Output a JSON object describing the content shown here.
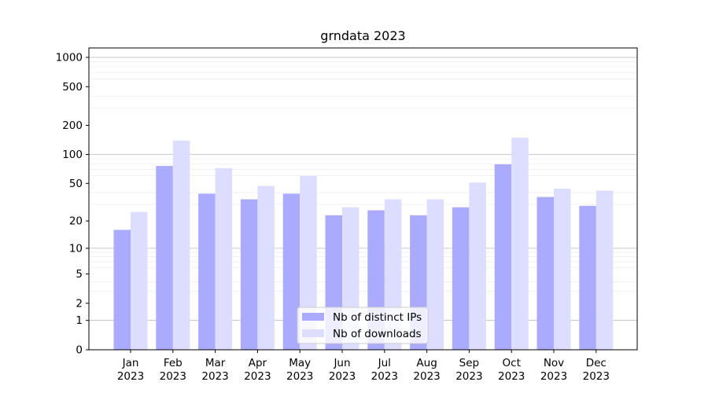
{
  "chart_data": {
    "type": "bar",
    "title": "grndata 2023",
    "xlabel": "",
    "ylabel": "",
    "categories": [
      "Jan\n2023",
      "Feb\n2023",
      "Mar\n2023",
      "Apr\n2023",
      "May\n2023",
      "Jun\n2023",
      "Jul\n2023",
      "Aug\n2023",
      "Sep\n2023",
      "Oct\n2023",
      "Nov\n2023",
      "Dec\n2023"
    ],
    "category_lines": [
      [
        "Jan",
        "2023"
      ],
      [
        "Feb",
        "2023"
      ],
      [
        "Mar",
        "2023"
      ],
      [
        "Apr",
        "2023"
      ],
      [
        "May",
        "2023"
      ],
      [
        "Jun",
        "2023"
      ],
      [
        "Jul",
        "2023"
      ],
      [
        "Aug",
        "2023"
      ],
      [
        "Sep",
        "2023"
      ],
      [
        "Oct",
        "2023"
      ],
      [
        "Nov",
        "2023"
      ],
      [
        "Dec",
        "2023"
      ]
    ],
    "series": [
      {
        "name": "Nb of distinct IPs",
        "color": "#aaaaff",
        "values": [
          16,
          76,
          39,
          34,
          39,
          23,
          26,
          23,
          28,
          79,
          36,
          29
        ]
      },
      {
        "name": "Nb of downloads",
        "color": "#ddddff",
        "values": [
          25,
          139,
          72,
          47,
          60,
          28,
          34,
          34,
          51,
          149,
          44,
          42
        ]
      }
    ],
    "yscale": "symlog",
    "ylim": [
      0,
      1250
    ],
    "yticks": [
      0,
      1,
      2,
      5,
      10,
      20,
      50,
      100,
      200,
      500,
      1000
    ],
    "ytick_labels": [
      "0",
      "1",
      "2",
      "5",
      "10",
      "20",
      "50",
      "100",
      "200",
      "500",
      "1000"
    ],
    "grid": true,
    "legend_position": "lower-center"
  }
}
